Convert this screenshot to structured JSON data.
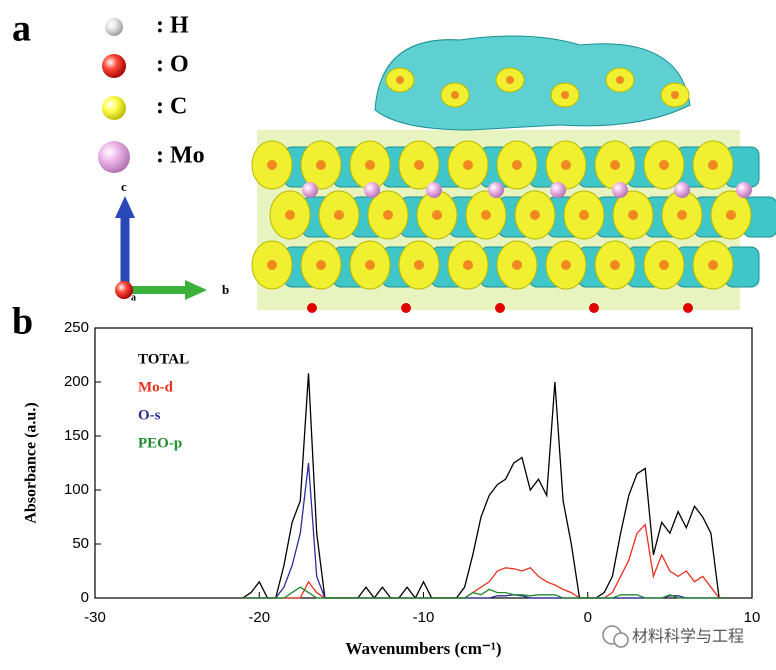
{
  "panel_a": {
    "label": "a",
    "legend": [
      ": H",
      ": O",
      ": C",
      ": Mo"
    ],
    "axes": [
      "c",
      "b",
      "a"
    ]
  },
  "panel_b": {
    "label": "b"
  },
  "watermark": "材料科学与工程",
  "chart_data": {
    "type": "line",
    "xlabel": "Wavenumbers (cm⁻¹)",
    "ylabel": "Absorbance (a.u.)",
    "x": [
      -21,
      -20.5,
      -20,
      -19.5,
      -19,
      -18.5,
      -18,
      -17.5,
      -17,
      -16.5,
      -16,
      -15.5,
      -15,
      -14.5,
      -14,
      -13.5,
      -13,
      -12.5,
      -12,
      -11.5,
      -11,
      -10.5,
      -10,
      -9.5,
      -9,
      -8.5,
      -8,
      -7.5,
      -7,
      -6.5,
      -6,
      -5.5,
      -5,
      -4.5,
      -4,
      -3.5,
      -3,
      -2.5,
      -2,
      -1.5,
      -1,
      -0.5,
      0,
      0.5,
      1,
      1.5,
      2,
      2.5,
      3,
      3.5,
      4,
      4.5,
      5,
      5.5,
      6,
      6.5,
      7,
      7.5,
      8,
      8.5
    ],
    "series": [
      {
        "name": "TOTAL",
        "color": "#000000",
        "values": [
          0,
          5,
          15,
          0,
          0,
          30,
          70,
          90,
          208,
          60,
          0,
          0,
          0,
          0,
          0,
          10,
          0,
          10,
          0,
          0,
          10,
          0,
          15,
          0,
          0,
          0,
          0,
          10,
          40,
          75,
          95,
          105,
          110,
          125,
          130,
          100,
          110,
          95,
          200,
          90,
          50,
          0,
          0,
          0,
          5,
          20,
          60,
          95,
          115,
          120,
          40,
          70,
          60,
          80,
          65,
          85,
          75,
          60,
          0,
          0
        ]
      },
      {
        "name": "Mo-d",
        "color": "#e8321e",
        "values": [
          0,
          0,
          0,
          0,
          0,
          0,
          0,
          0,
          15,
          5,
          0,
          0,
          0,
          0,
          0,
          0,
          0,
          0,
          0,
          0,
          0,
          0,
          0,
          0,
          0,
          0,
          0,
          0,
          5,
          10,
          15,
          25,
          28,
          27,
          25,
          28,
          20,
          15,
          12,
          8,
          5,
          0,
          0,
          0,
          0,
          5,
          20,
          35,
          60,
          68,
          20,
          40,
          25,
          20,
          25,
          15,
          20,
          10,
          0,
          0
        ]
      },
      {
        "name": "O-s",
        "color": "#2b2d9c",
        "values": [
          0,
          0,
          0,
          0,
          0,
          10,
          30,
          60,
          125,
          20,
          0,
          0,
          0,
          0,
          0,
          0,
          0,
          0,
          0,
          0,
          0,
          0,
          0,
          0,
          0,
          0,
          0,
          0,
          0,
          0,
          0,
          2,
          2,
          3,
          2,
          0,
          0,
          0,
          0,
          0,
          0,
          0,
          0,
          0,
          0,
          0,
          0,
          0,
          0,
          0,
          0,
          0,
          2,
          2,
          0,
          0,
          0,
          0,
          0,
          0
        ]
      },
      {
        "name": "PEO-p",
        "color": "#1f8a2e",
        "values": [
          0,
          0,
          0,
          0,
          0,
          0,
          5,
          10,
          5,
          0,
          0,
          0,
          0,
          0,
          0,
          0,
          0,
          0,
          0,
          0,
          0,
          0,
          0,
          0,
          0,
          0,
          0,
          0,
          5,
          3,
          8,
          5,
          5,
          3,
          3,
          2,
          3,
          3,
          3,
          0,
          0,
          0,
          0,
          0,
          0,
          0,
          3,
          3,
          3,
          0,
          0,
          0,
          3,
          0,
          0,
          0,
          0,
          0,
          0,
          0
        ]
      }
    ],
    "xlim": [
      -30,
      10
    ],
    "xticks": [
      -30,
      -20,
      -10,
      0,
      10
    ],
    "ylim": [
      0,
      250
    ],
    "yticks": [
      0,
      50,
      100,
      150,
      200,
      250
    ]
  }
}
